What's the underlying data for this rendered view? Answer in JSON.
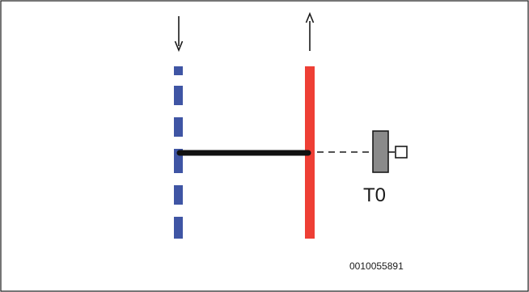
{
  "diagram": {
    "valve_label": "T0",
    "document_id": "0010055891",
    "colors": {
      "supply_line": "#3f55a4",
      "return_line": "#ee3f35",
      "connector": "#111111",
      "valve_body": "#8a8a8a",
      "frame": "#1a1a1a"
    },
    "icons": {
      "supply_flow": "arrow-down-icon",
      "return_flow": "arrow-up-icon",
      "valve": "valve-icon"
    }
  }
}
